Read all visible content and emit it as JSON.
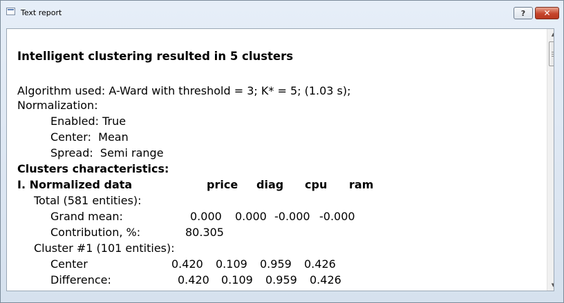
{
  "window": {
    "title": "Text report",
    "help_label": "?",
    "close_label": "✕"
  },
  "report": {
    "heading": "Intelligent clustering resulted in 5 clusters",
    "algorithm": "Algorithm used: A-Ward with threshold = 3; K* = 5; (1.03 s);",
    "normalization_label": "Normalization:",
    "enabled": "Enabled: True",
    "center": "Center:  Mean",
    "spread": "Spread:  Semi range",
    "clusters_characteristics": "Clusters characteristics:",
    "section_title": "I. Normalized data",
    "columns": [
      "price",
      "diag",
      "cpu",
      "ram"
    ],
    "total_label": "Total (581 entities):",
    "grand_mean_label": "Grand mean:",
    "grand_mean_values": [
      "0.000",
      "0.000",
      "-0.000",
      "-0.000"
    ],
    "contribution_label": "Contribution, %:",
    "contribution_value": "80.305",
    "cluster1_label": "Cluster #1 (101 entities):",
    "center_label": "Center",
    "center_values": [
      "0.420",
      "0.109",
      "0.959",
      "0.426"
    ],
    "difference_label": "Difference:",
    "difference_values": [
      "0.420",
      "0.109",
      "0.959",
      "0.426"
    ]
  }
}
